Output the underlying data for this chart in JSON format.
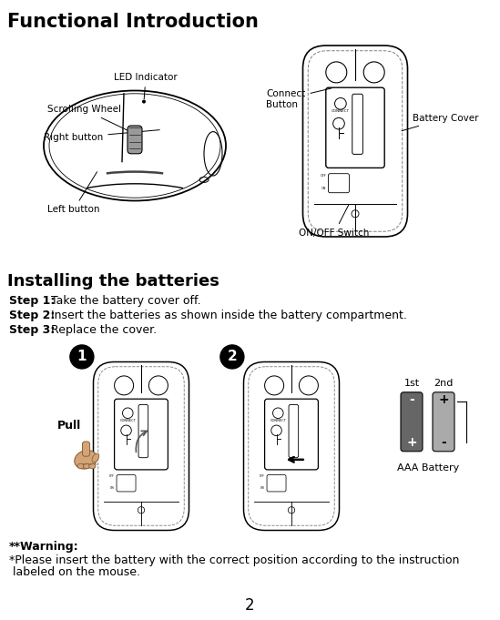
{
  "title": "Functional Introduction",
  "section2_title": "Installing the batteries",
  "step1_bold": "Step 1:",
  "step1_text": " Take the battery cover off.",
  "step2_bold": "Step 2:",
  "step2_text": " Insert the batteries as shown inside the battery compartment.",
  "step3_bold": "Step 3:",
  "step3_text": " Replace the cover.",
  "warning_bold": "**Warning:",
  "warning_line1": "*Please insert the battery with the correct position according to the instruction",
  "warning_line2": " labeled on the mouse.",
  "page_number": "2",
  "bg_color": "#ffffff",
  "text_color": "#000000",
  "label_led": "LED Indicator",
  "label_scroll": "Scrolling Wheel",
  "label_right": "Right button",
  "label_left": "Left button",
  "label_connect": "Connect\nButton",
  "label_battery_cover": "Battery Cover",
  "label_onoff": "ON/OFF Switch",
  "label_pull": "Pull",
  "label_1st": "1st",
  "label_2nd": "2nd",
  "label_aaa": "AAA Battery"
}
